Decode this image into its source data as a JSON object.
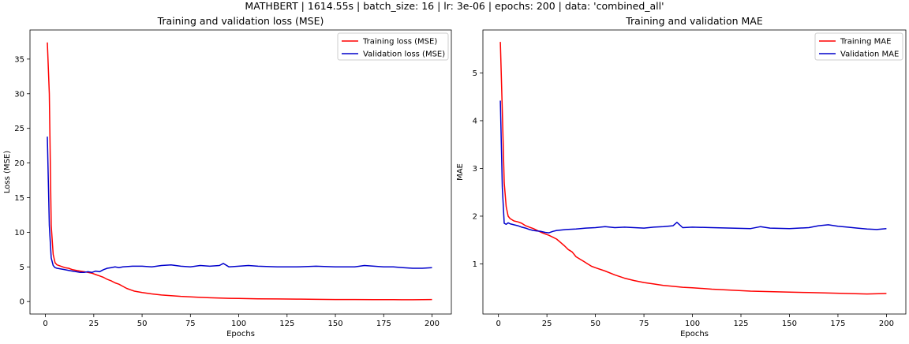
{
  "figure": {
    "suptitle": "MATHBERT | 1614.55s | batch_size: 16 | lr: 3e-06 | epochs: 200 | data: 'combined_all'"
  },
  "chart_data": [
    {
      "type": "line",
      "title": "Training and validation loss (MSE)",
      "xlabel": "Epochs",
      "ylabel": "Loss (MSE)",
      "xlim": [
        -8,
        210
      ],
      "ylim": [
        -1.8,
        39.2
      ],
      "xticks": [
        0,
        25,
        50,
        75,
        100,
        125,
        150,
        175,
        200
      ],
      "yticks": [
        0,
        5,
        10,
        15,
        20,
        25,
        30,
        35
      ],
      "legend_position": "top-right",
      "series": [
        {
          "name": "Training loss (MSE)",
          "color": "#ff0000",
          "x": [
            1,
            2,
            3,
            4,
            5,
            6,
            8,
            10,
            12,
            14,
            16,
            18,
            20,
            22,
            24,
            26,
            28,
            30,
            32,
            34,
            36,
            38,
            40,
            42,
            44,
            46,
            48,
            50,
            55,
            60,
            65,
            70,
            75,
            80,
            85,
            90,
            95,
            100,
            110,
            120,
            130,
            140,
            150,
            160,
            170,
            180,
            190,
            200
          ],
          "values": [
            37.4,
            30.0,
            11.0,
            6.8,
            5.6,
            5.3,
            5.1,
            4.9,
            4.8,
            4.6,
            4.5,
            4.4,
            4.3,
            4.2,
            4.1,
            3.9,
            3.7,
            3.5,
            3.2,
            3.0,
            2.7,
            2.5,
            2.2,
            1.9,
            1.7,
            1.5,
            1.4,
            1.3,
            1.1,
            0.95,
            0.85,
            0.75,
            0.68,
            0.6,
            0.55,
            0.5,
            0.47,
            0.45,
            0.4,
            0.37,
            0.35,
            0.32,
            0.3,
            0.3,
            0.28,
            0.27,
            0.26,
            0.3
          ]
        },
        {
          "name": "Validation loss (MSE)",
          "color": "#0000cc",
          "x": [
            1,
            2,
            3,
            4,
            5,
            6,
            8,
            10,
            12,
            14,
            16,
            18,
            20,
            22,
            24,
            26,
            28,
            30,
            32,
            34,
            36,
            38,
            40,
            45,
            50,
            55,
            60,
            65,
            70,
            75,
            80,
            85,
            90,
            92,
            95,
            100,
            105,
            110,
            120,
            130,
            140,
            150,
            160,
            165,
            170,
            175,
            180,
            185,
            190,
            195,
            200
          ],
          "values": [
            23.8,
            11.0,
            6.3,
            5.2,
            4.9,
            4.8,
            4.7,
            4.6,
            4.5,
            4.4,
            4.3,
            4.2,
            4.2,
            4.3,
            4.2,
            4.4,
            4.3,
            4.6,
            4.8,
            4.9,
            5.0,
            4.9,
            5.0,
            5.1,
            5.1,
            5.0,
            5.2,
            5.3,
            5.1,
            5.0,
            5.2,
            5.1,
            5.2,
            5.5,
            5.0,
            5.1,
            5.2,
            5.1,
            5.0,
            5.0,
            5.1,
            5.0,
            5.0,
            5.2,
            5.1,
            5.0,
            5.0,
            4.9,
            4.8,
            4.8,
            4.9
          ]
        }
      ]
    },
    {
      "type": "line",
      "title": "Training and validation MAE",
      "xlabel": "Epochs",
      "ylabel": "MAE",
      "xlim": [
        -8,
        210
      ],
      "ylim": [
        -0.05,
        5.9
      ],
      "xticks": [
        0,
        25,
        50,
        75,
        100,
        125,
        150,
        175,
        200
      ],
      "yticks": [
        1,
        2,
        3,
        4,
        5
      ],
      "legend_position": "top-right",
      "series": [
        {
          "name": "Training MAE",
          "color": "#ff0000",
          "x": [
            1,
            2,
            3,
            4,
            5,
            6,
            8,
            10,
            12,
            14,
            16,
            18,
            20,
            22,
            24,
            26,
            28,
            30,
            32,
            34,
            36,
            38,
            40,
            42,
            44,
            46,
            48,
            50,
            55,
            60,
            65,
            70,
            75,
            80,
            85,
            90,
            95,
            100,
            110,
            120,
            130,
            140,
            150,
            160,
            170,
            180,
            190,
            200
          ],
          "values": [
            5.65,
            4.2,
            2.7,
            2.2,
            2.0,
            1.95,
            1.9,
            1.88,
            1.85,
            1.8,
            1.77,
            1.74,
            1.7,
            1.66,
            1.63,
            1.6,
            1.56,
            1.52,
            1.45,
            1.38,
            1.3,
            1.25,
            1.15,
            1.1,
            1.05,
            1.0,
            0.95,
            0.92,
            0.85,
            0.77,
            0.7,
            0.65,
            0.61,
            0.58,
            0.55,
            0.53,
            0.51,
            0.5,
            0.47,
            0.45,
            0.43,
            0.42,
            0.41,
            0.4,
            0.39,
            0.38,
            0.37,
            0.38
          ]
        },
        {
          "name": "Validation MAE",
          "color": "#0000cc",
          "x": [
            1,
            2,
            3,
            4,
            5,
            6,
            8,
            10,
            12,
            14,
            16,
            18,
            20,
            22,
            24,
            26,
            28,
            30,
            35,
            40,
            45,
            50,
            55,
            60,
            65,
            70,
            75,
            80,
            85,
            90,
            92,
            95,
            100,
            110,
            120,
            130,
            135,
            140,
            150,
            160,
            165,
            170,
            175,
            180,
            185,
            190,
            195,
            200
          ],
          "values": [
            4.42,
            2.6,
            1.85,
            1.83,
            1.86,
            1.84,
            1.82,
            1.8,
            1.77,
            1.75,
            1.72,
            1.7,
            1.69,
            1.68,
            1.66,
            1.65,
            1.68,
            1.7,
            1.72,
            1.73,
            1.75,
            1.76,
            1.78,
            1.76,
            1.77,
            1.76,
            1.75,
            1.77,
            1.78,
            1.8,
            1.87,
            1.76,
            1.77,
            1.76,
            1.75,
            1.74,
            1.78,
            1.75,
            1.74,
            1.76,
            1.8,
            1.82,
            1.79,
            1.77,
            1.75,
            1.73,
            1.72,
            1.74
          ]
        }
      ]
    }
  ]
}
